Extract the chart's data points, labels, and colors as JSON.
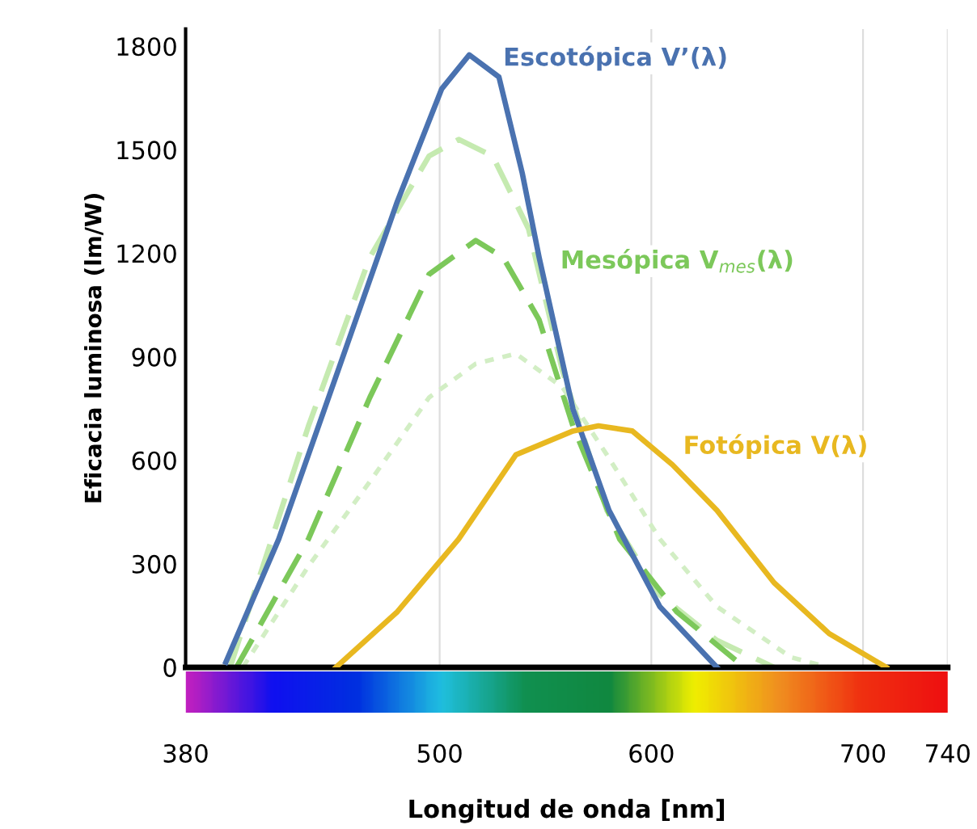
{
  "chart_data": {
    "type": "line",
    "xlabel": "Longitud de onda [nm]",
    "ylabel": "Eficacia luminosa (lm/W)",
    "xlim": [
      380,
      740
    ],
    "xticks": [
      380,
      500,
      600,
      700,
      740
    ],
    "ylim": [
      0,
      1850
    ],
    "yticks": [
      0,
      300,
      600,
      900,
      1200,
      1500,
      1800
    ],
    "grid": "x",
    "legend": false,
    "marker": "none",
    "series": [
      {
        "name": "Escotópica V’(λ)",
        "color": "#4a72b0",
        "line_style": "solid",
        "x": [
          399,
          424,
          452,
          480,
          501,
          514,
          528,
          539,
          547,
          563,
          580,
          604,
          631
        ],
        "values": [
          15,
          372,
          860,
          1350,
          1677,
          1775,
          1711,
          1433,
          1188,
          748,
          455,
          176,
          0
        ]
      },
      {
        "color": "#c5eab0",
        "line_style": "dashed",
        "x": [
          401,
          438,
          467,
          495,
          509,
          525,
          542,
          558,
          579,
          604,
          631,
          658
        ],
        "values": [
          0,
          699,
          1188,
          1482,
          1530,
          1482,
          1271,
          860,
          455,
          210,
          78,
          0
        ]
      },
      {
        "name": "Mesópica V$_{mes}$(λ)",
        "color": "#7cc85a",
        "line_style": "dashed",
        "x": [
          404,
          438,
          467,
          495,
          517,
          530,
          547,
          563,
          585,
          612,
          644
        ],
        "values": [
          0,
          372,
          782,
          1139,
          1237,
          1188,
          1007,
          699,
          372,
          161,
          0
        ]
      },
      {
        "color": "#d2eec4",
        "line_style": "dotted",
        "x": [
          407,
          438,
          467,
          495,
          517,
          536,
          558,
          579,
          604,
          631,
          666,
          684
        ],
        "values": [
          0,
          293,
          538,
          782,
          880,
          909,
          812,
          616,
          372,
          176,
          29,
          0
        ]
      },
      {
        "name": "Fotópica V(λ)",
        "color": "#e8b820",
        "line_style": "solid",
        "x": [
          451,
          480,
          509,
          536,
          563,
          575,
          591,
          610,
          631,
          658,
          684,
          711
        ],
        "values": [
          0,
          161,
          372,
          616,
          685,
          700,
          685,
          587,
          455,
          245,
          98,
          0
        ]
      }
    ]
  }
}
